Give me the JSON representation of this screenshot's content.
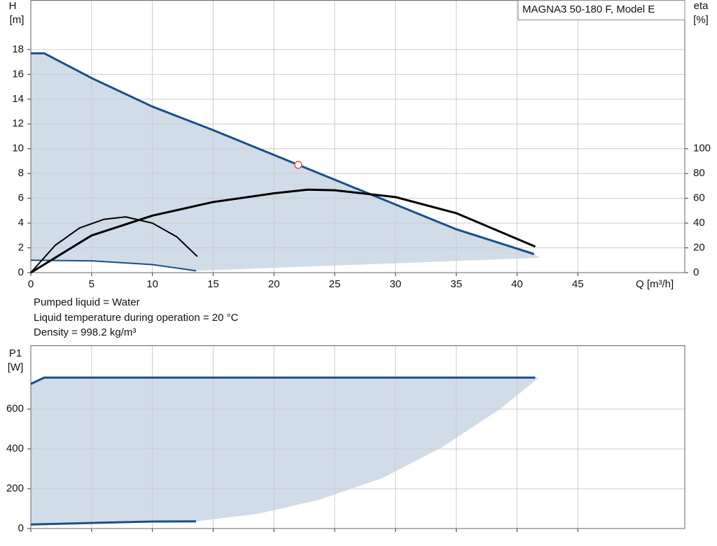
{
  "chart_data": [
    {
      "type": "line",
      "title": "MAGNA3 50-180 F, Model E",
      "xlabel": "Q [m³/h]",
      "ylabel": "H",
      "yunit": "[m]",
      "y2label": "eta",
      "y2unit": "[%]",
      "xlim": [
        0,
        53.8
      ],
      "xticks": [
        0,
        5,
        10,
        15,
        20,
        25,
        30,
        35,
        40,
        45
      ],
      "ylim": [
        0,
        22
      ],
      "yticks": [
        0,
        2,
        4,
        6,
        8,
        10,
        12,
        14,
        16,
        18
      ],
      "y2lim": [
        0,
        220
      ],
      "y2ticks": [
        0,
        20,
        40,
        60,
        80,
        100
      ],
      "grid": true,
      "series": [
        {
          "style": "area",
          "color": "#d0dce7",
          "x": [
            0,
            1.1,
            5,
            10,
            15,
            20,
            25,
            30,
            35,
            41.4,
            41.9,
            13.6,
            10,
            5,
            0
          ],
          "values": [
            17.7,
            17.7,
            15.7,
            13.4,
            11.5,
            9.5,
            7.5,
            5.5,
            3.5,
            1.5,
            1.2,
            0.15,
            0.65,
            0.95,
            1.0
          ]
        },
        {
          "style": "line",
          "color": "#1a4f8a",
          "width": 3,
          "x": [
            0,
            1.1,
            5,
            10,
            15,
            20,
            25,
            30,
            35,
            41.4
          ],
          "values": [
            17.7,
            17.7,
            15.7,
            13.4,
            11.5,
            9.5,
            7.5,
            5.5,
            3.5,
            1.5
          ]
        },
        {
          "style": "line",
          "color": "#1a4f8a",
          "width": 2,
          "x": [
            0,
            5,
            10,
            13.6
          ],
          "values": [
            1.0,
            0.95,
            0.65,
            0.15
          ]
        },
        {
          "style": "line",
          "color": "#000000",
          "width": 3,
          "axis": "y2",
          "x": [
            0,
            5,
            10,
            15,
            20,
            22.8,
            25,
            30,
            35,
            41.5
          ],
          "values": [
            0,
            30,
            46,
            57,
            64,
            67,
            66.5,
            61,
            48,
            21
          ]
        },
        {
          "style": "line",
          "color": "#000000",
          "width": 2,
          "axis": "y2",
          "x": [
            0,
            2,
            4,
            6,
            7.8,
            10,
            12,
            13.7
          ],
          "values": [
            0,
            22,
            36,
            43,
            45,
            40,
            29,
            13
          ]
        },
        {
          "style": "point",
          "color": "#e03030",
          "x": [
            22
          ],
          "values": [
            8.7
          ]
        }
      ]
    },
    {
      "type": "line",
      "ylabel": "P1",
      "yunit": "[W]",
      "xlim": [
        0,
        53.8
      ],
      "xticks": [
        0,
        5,
        10,
        15,
        20,
        25,
        30,
        35,
        40,
        45
      ],
      "ylim": [
        0,
        920
      ],
      "yticks": [
        0,
        200,
        400,
        600
      ],
      "grid": true,
      "series": [
        {
          "style": "area",
          "color": "#d0dce7",
          "x": [
            0,
            1.1,
            41.5,
            41.8,
            38.6,
            33.8,
            28.9,
            23.7,
            18.7,
            13.6,
            10,
            5,
            0
          ],
          "values": [
            726,
            758,
            758,
            758,
            600,
            407,
            253,
            144,
            74,
            36,
            35,
            28,
            20
          ]
        },
        {
          "style": "line",
          "color": "#1a4f8a",
          "width": 3,
          "x": [
            0,
            1.1,
            41.5
          ],
          "values": [
            726,
            758,
            758
          ]
        },
        {
          "style": "line",
          "color": "#1a4f8a",
          "width": 3,
          "x": [
            0,
            5,
            10,
            13.6
          ],
          "values": [
            20,
            28,
            35,
            36
          ]
        }
      ]
    }
  ],
  "notes": [
    "Pumped liquid = Water",
    "Liquid temperature during operation = 20 °C",
    "Density = 998.2 kg/m³"
  ]
}
